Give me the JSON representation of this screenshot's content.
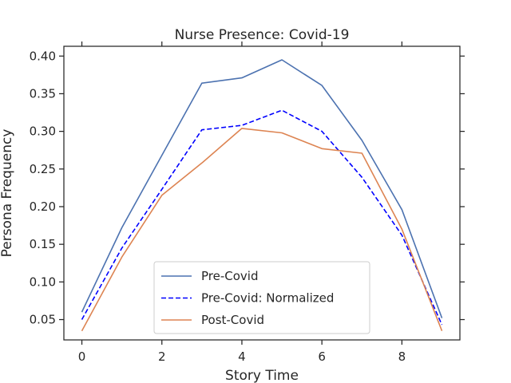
{
  "chart_data": {
    "type": "line",
    "title": "Nurse Presence: Covid-19",
    "xlabel": "Story Time",
    "ylabel": "Persona Frequency",
    "xlim": [
      -0.45,
      9.45
    ],
    "ylim": [
      0.023,
      0.413
    ],
    "x_ticks": [
      0,
      2,
      4,
      6,
      8
    ],
    "y_ticks": [
      0.05,
      0.1,
      0.15,
      0.2,
      0.25,
      0.3,
      0.35,
      0.4
    ],
    "x": [
      0,
      1,
      2,
      3,
      4,
      5,
      6,
      7,
      8,
      9
    ],
    "series": [
      {
        "name": "Pre-Covid",
        "color": "#4c72b0",
        "style": "solid",
        "values": [
          0.06,
          0.172,
          0.268,
          0.364,
          0.371,
          0.395,
          0.361,
          0.288,
          0.196,
          0.052
        ]
      },
      {
        "name": "Pre-Covid: Normalized",
        "color": "#0000ff",
        "style": "dashed",
        "values": [
          0.05,
          0.145,
          0.223,
          0.302,
          0.308,
          0.328,
          0.3,
          0.239,
          0.162,
          0.043
        ]
      },
      {
        "name": "Post-Covid",
        "color": "#dd8452",
        "style": "solid",
        "values": [
          0.035,
          0.133,
          0.215,
          0.258,
          0.304,
          0.298,
          0.277,
          0.271,
          0.17,
          0.035
        ]
      }
    ],
    "legend": {
      "placement": "lower-center"
    },
    "grid": false
  }
}
